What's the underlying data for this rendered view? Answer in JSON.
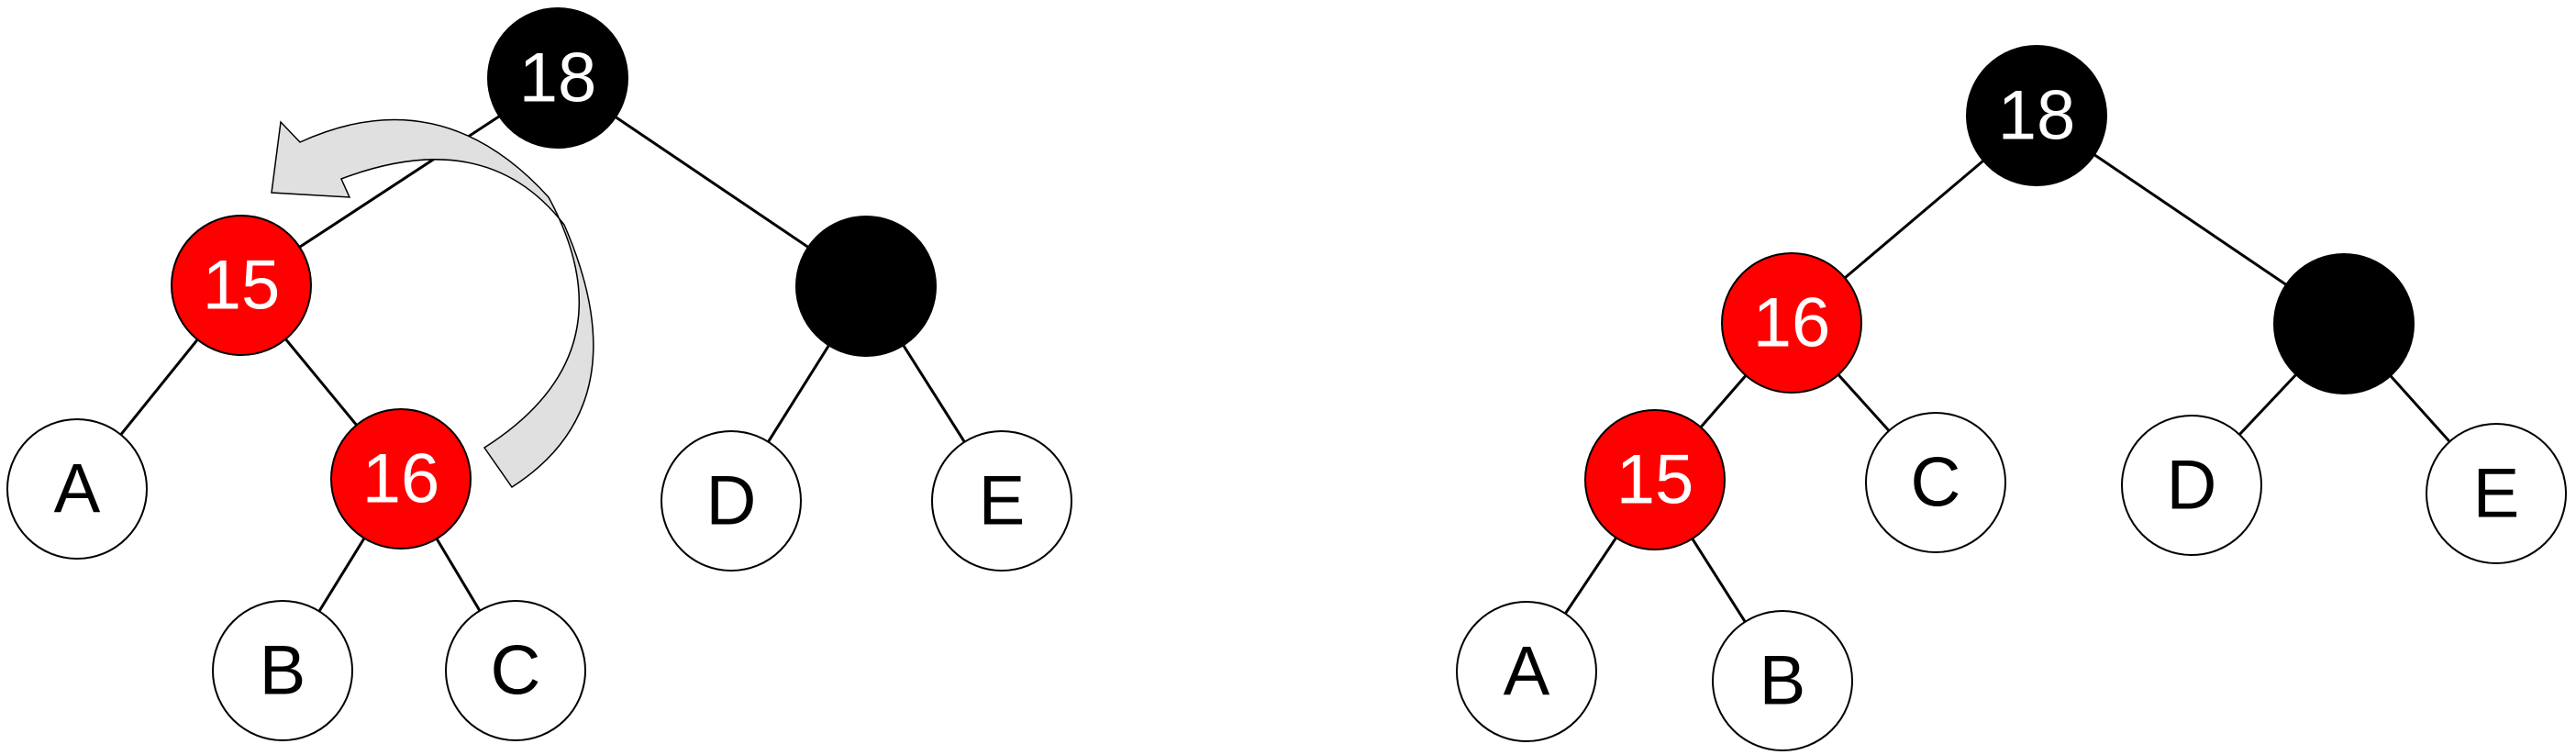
{
  "colors": {
    "red": "#ff0000",
    "black": "#000000",
    "white": "#ffffff",
    "arrow_fill": "#e0e0e0"
  },
  "left_tree": {
    "nodes": [
      {
        "id": "n18",
        "label": "18",
        "color": "black"
      },
      {
        "id": "n15",
        "label": "15",
        "color": "red"
      },
      {
        "id": "nblack",
        "label": "",
        "color": "black"
      },
      {
        "id": "nA",
        "label": "A",
        "color": "white"
      },
      {
        "id": "n16",
        "label": "16",
        "color": "red"
      },
      {
        "id": "nD",
        "label": "D",
        "color": "white"
      },
      {
        "id": "nE",
        "label": "E",
        "color": "white"
      },
      {
        "id": "nB",
        "label": "B",
        "color": "white"
      },
      {
        "id": "nC",
        "label": "C",
        "color": "white"
      }
    ],
    "edges": [
      [
        "n18",
        "n15"
      ],
      [
        "n18",
        "nblack"
      ],
      [
        "n15",
        "nA"
      ],
      [
        "n15",
        "n16"
      ],
      [
        "nblack",
        "nD"
      ],
      [
        "nblack",
        "nE"
      ],
      [
        "n16",
        "nB"
      ],
      [
        "n16",
        "nC"
      ]
    ],
    "rotation_arrow": "curved-arrow-icon"
  },
  "right_tree": {
    "nodes": [
      {
        "id": "n18",
        "label": "18",
        "color": "black"
      },
      {
        "id": "n16",
        "label": "16",
        "color": "red"
      },
      {
        "id": "nblack",
        "label": "",
        "color": "black"
      },
      {
        "id": "n15",
        "label": "15",
        "color": "red"
      },
      {
        "id": "nC",
        "label": "C",
        "color": "white"
      },
      {
        "id": "nD",
        "label": "D",
        "color": "white"
      },
      {
        "id": "nE",
        "label": "E",
        "color": "white"
      },
      {
        "id": "nA",
        "label": "A",
        "color": "white"
      },
      {
        "id": "nB",
        "label": "B",
        "color": "white"
      }
    ],
    "edges": [
      [
        "n18",
        "n16"
      ],
      [
        "n18",
        "nblack"
      ],
      [
        "n16",
        "n15"
      ],
      [
        "n16",
        "nC"
      ],
      [
        "nblack",
        "nD"
      ],
      [
        "nblack",
        "nE"
      ],
      [
        "n15",
        "nA"
      ],
      [
        "n15",
        "nB"
      ]
    ]
  }
}
